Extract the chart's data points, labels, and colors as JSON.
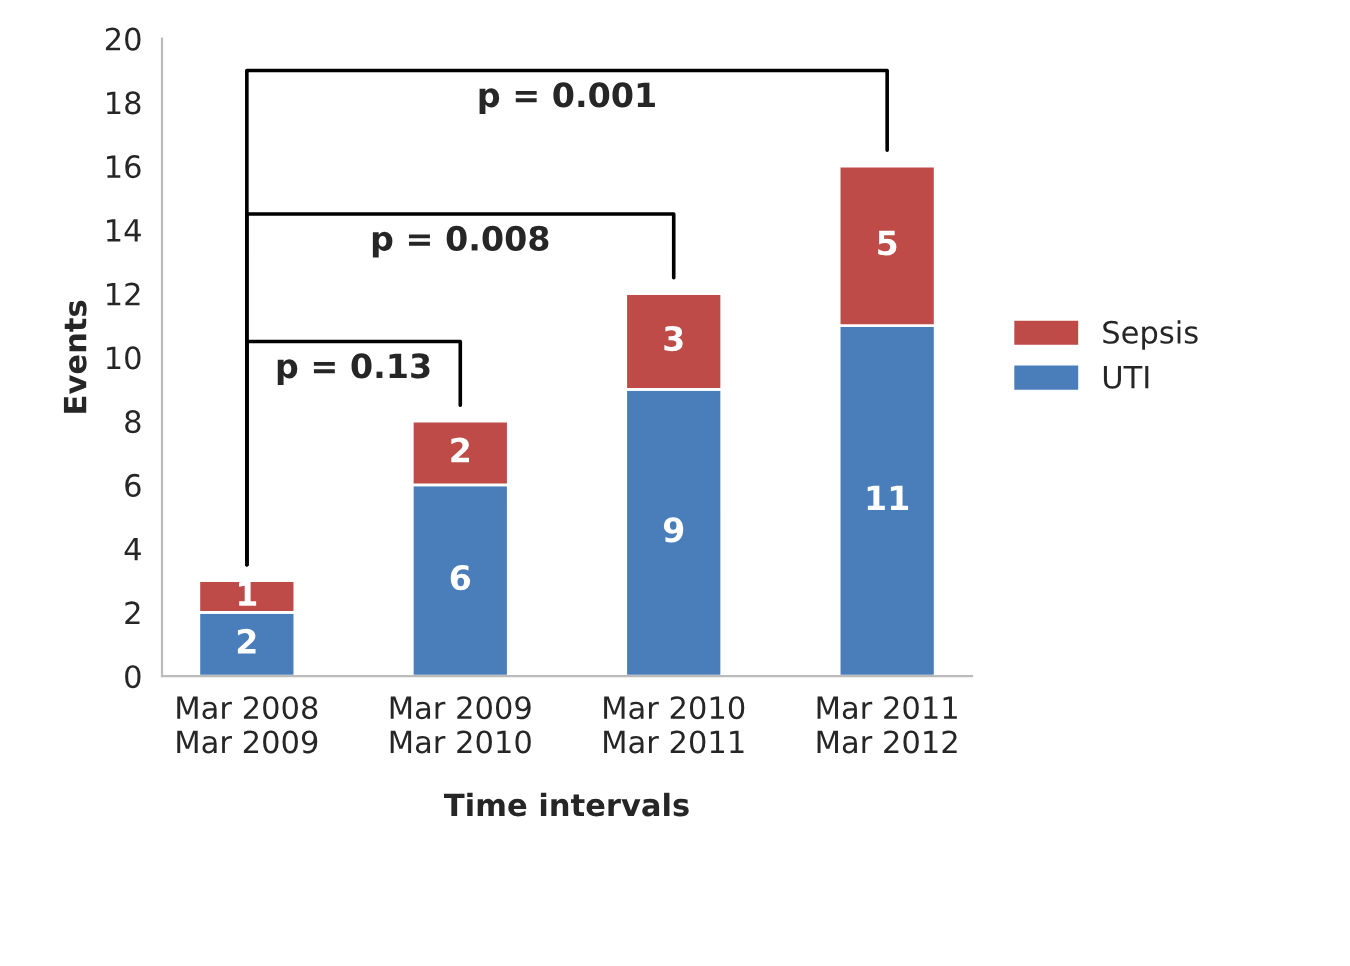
{
  "chart_data": {
    "type": "bar",
    "stacked": true,
    "xlabel": "Time intervals",
    "ylabel": "Events",
    "categories": [
      "Mar 2008\nMar 2009",
      "Mar 2009\nMar 2010",
      "Mar 2010\nMar 2011",
      "Mar 2011\nMar 2012"
    ],
    "series": [
      {
        "name": "UTI",
        "color": "#4a7ebb",
        "values": [
          2,
          6,
          9,
          11
        ]
      },
      {
        "name": "Sepsis",
        "color": "#be4b48",
        "values": [
          1,
          2,
          3,
          5
        ]
      }
    ],
    "ylim": [
      0,
      20
    ],
    "yticks": [
      0,
      2,
      4,
      6,
      8,
      10,
      12,
      14,
      16,
      18,
      20
    ],
    "data_labels": true,
    "legend": "right",
    "grid": false,
    "annotations": [
      "p = 0.13",
      "p = 0.008",
      "p = 0.001"
    ]
  }
}
